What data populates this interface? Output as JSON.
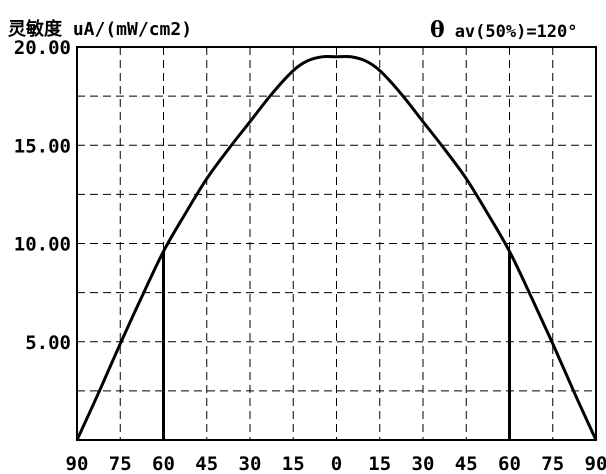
{
  "chart_data": {
    "type": "line",
    "title": "灵敏度 uA/(mW/cm2)",
    "annotation": {
      "symbol": "θ",
      "text": "av(50%)=120°"
    },
    "xlabel": "",
    "ylabel": "",
    "x_tick_labels": [
      "90",
      "75",
      "60",
      "45",
      "30",
      "15",
      "0",
      "15",
      "30",
      "45",
      "60",
      "75",
      "90"
    ],
    "x_ticks": [
      -90,
      -75,
      -60,
      -45,
      -30,
      -15,
      0,
      15,
      30,
      45,
      60,
      75,
      90
    ],
    "y_tick_labels": [
      "20.00",
      "15.00",
      "10.00",
      "5.00"
    ],
    "y_ticks": [
      20,
      15,
      10,
      5
    ],
    "xlim": [
      -90,
      90
    ],
    "ylim": [
      0,
      20
    ],
    "grid": true,
    "grid_style": "dashed",
    "series": [
      {
        "x": [
          -90,
          -82.5,
          -75,
          -67.5,
          -60,
          -52.5,
          -45,
          -37.5,
          -30,
          -22.5,
          -15,
          -10,
          -5,
          0,
          5,
          10,
          15,
          22.5,
          30,
          37.5,
          45,
          52.5,
          60,
          67.5,
          75,
          82.5,
          90
        ],
        "values": [
          0,
          2.4,
          4.9,
          7.3,
          9.6,
          11.5,
          13.3,
          14.8,
          16.2,
          17.6,
          18.8,
          19.3,
          19.5,
          19.5,
          19.5,
          19.3,
          18.8,
          17.6,
          16.2,
          14.8,
          13.3,
          11.5,
          9.6,
          7.3,
          4.9,
          2.4,
          0
        ]
      }
    ],
    "markers": [
      {
        "x": -60,
        "y": 9.6
      },
      {
        "x": 60,
        "y": 9.6
      }
    ]
  }
}
